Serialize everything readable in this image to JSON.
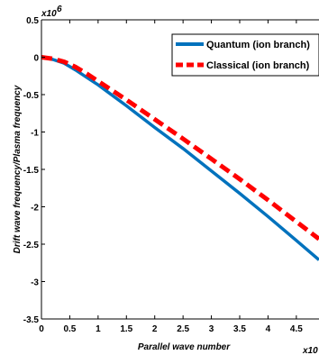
{
  "chart_data": {
    "type": "line",
    "xlabel": "Parallel wave number",
    "ylabel": "Drift wave frequency/Plasma frequency",
    "x_exponent_label": "x10",
    "y_exponent_label": "x10",
    "y_exponent_power": "6",
    "xlim": [
      0,
      4.9
    ],
    "ylim": [
      -3.5,
      0.5
    ],
    "x_ticks": [
      "0",
      "0.5",
      "1",
      "1.5",
      "2",
      "2.5",
      "3",
      "3.5",
      "4",
      "4.5"
    ],
    "y_ticks": [
      "0.5",
      "0",
      "-0.5",
      "-1",
      "-1.5",
      "-2",
      "-2.5",
      "-3",
      "-3.5"
    ],
    "grid": false,
    "legend_position": "top-right",
    "series": [
      {
        "name": "Quantum (ion branch)",
        "color": "#0072BD",
        "style": "solid",
        "x": [
          0,
          0.2,
          0.4,
          0.6,
          0.8,
          1.0,
          1.5,
          2.0,
          2.5,
          3.0,
          3.5,
          4.0,
          4.5,
          4.9
        ],
        "y": [
          0.0,
          -0.03,
          -0.08,
          -0.17,
          -0.27,
          -0.37,
          -0.65,
          -0.94,
          -1.22,
          -1.52,
          -1.82,
          -2.13,
          -2.45,
          -2.71
        ]
      },
      {
        "name": "Classical (ion branch)",
        "color": "#FF0000",
        "style": "dashed",
        "x": [
          0,
          0.2,
          0.4,
          0.6,
          0.8,
          1.0,
          1.5,
          2.0,
          2.5,
          3.0,
          3.5,
          4.0,
          4.5,
          4.9
        ],
        "y": [
          0.0,
          -0.02,
          -0.06,
          -0.13,
          -0.22,
          -0.32,
          -0.57,
          -0.83,
          -1.09,
          -1.36,
          -1.63,
          -1.91,
          -2.2,
          -2.43
        ]
      }
    ]
  }
}
